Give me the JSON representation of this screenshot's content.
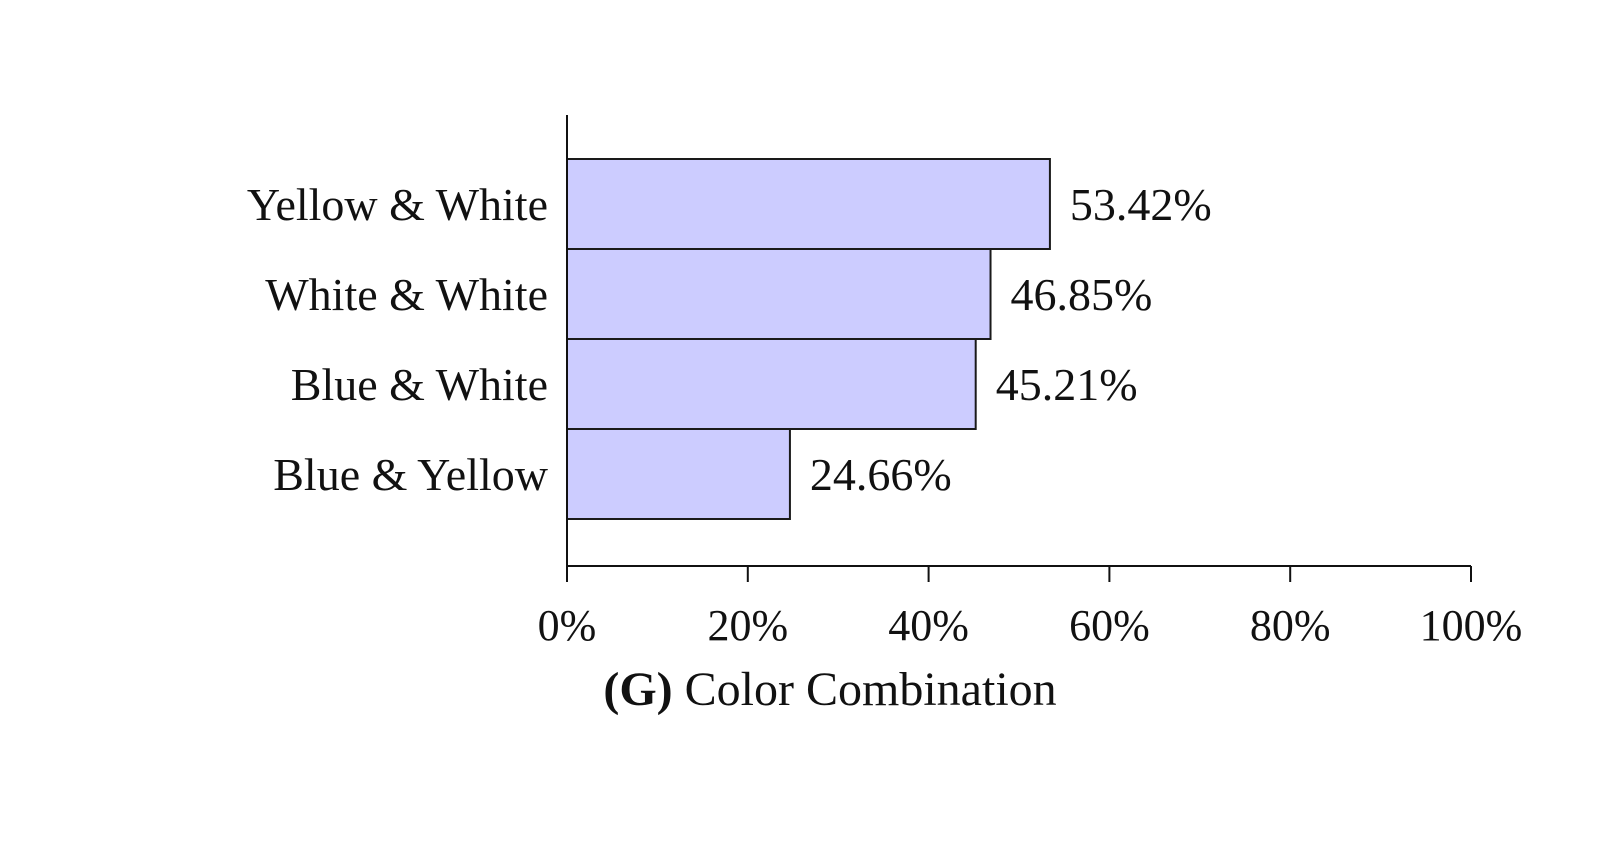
{
  "chart_data": {
    "type": "bar",
    "orientation": "horizontal",
    "categories": [
      "Yellow & White",
      "White & White",
      "Blue & White",
      "Blue & Yellow"
    ],
    "values": [
      53.42,
      46.85,
      45.21,
      24.66
    ],
    "value_labels": [
      "53.42%",
      "46.85%",
      "45.21%",
      "24.66%"
    ],
    "xlim": [
      0,
      100
    ],
    "x_ticks": [
      0,
      20,
      40,
      60,
      80,
      100
    ],
    "x_tick_labels": [
      "0%",
      "20%",
      "40%",
      "60%",
      "80%",
      "100%"
    ],
    "caption_prefix": "(G)",
    "caption_text": "Color Combination",
    "bar_color": "#ccccff",
    "bar_edge_color": "#1a1a1a",
    "grid": false
  }
}
